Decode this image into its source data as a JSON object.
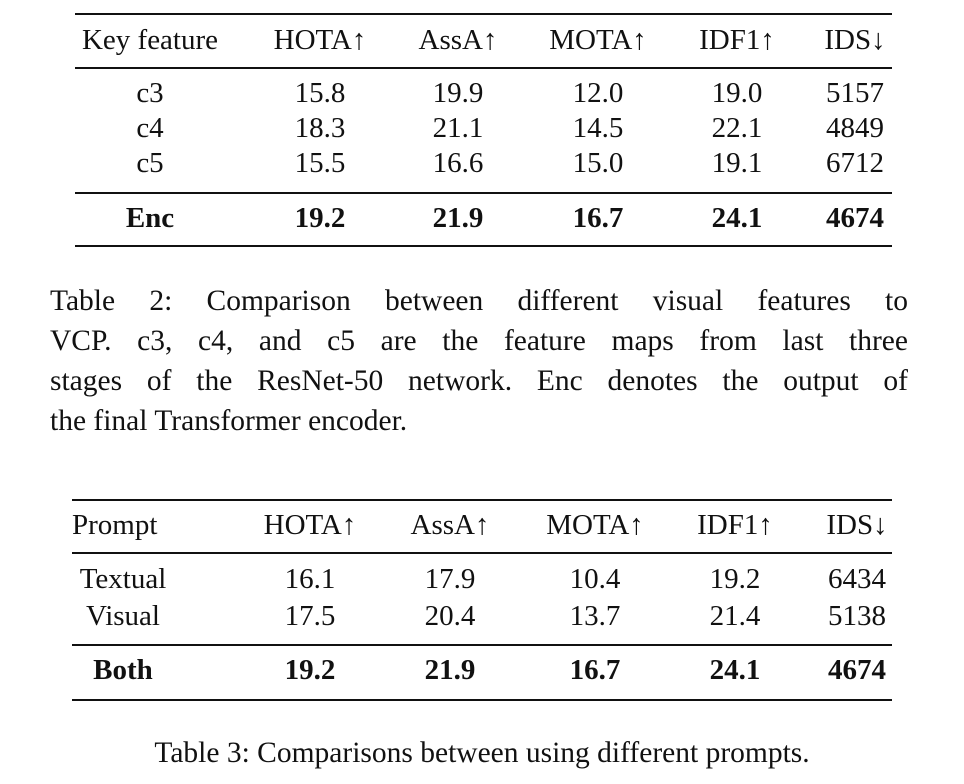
{
  "table2": {
    "headers": [
      "Key feature",
      "HOTA↑",
      "AssA↑",
      "MOTA↑",
      "IDF1↑",
      "IDS↓"
    ],
    "rows": [
      [
        "c3",
        "15.8",
        "19.9",
        "12.0",
        "19.0",
        "5157"
      ],
      [
        "c4",
        "18.3",
        "21.1",
        "14.5",
        "22.1",
        "4849"
      ],
      [
        "c5",
        "15.5",
        "16.6",
        "15.0",
        "19.1",
        "6712"
      ]
    ],
    "best": [
      "Enc",
      "19.2",
      "21.9",
      "16.7",
      "24.1",
      "4674"
    ],
    "caption_lines": [
      "Table 2: Comparison between different visual features to",
      "VCP. c3, c4, and c5 are the feature maps from last three",
      "stages of the ResNet-50 network. Enc denotes the output of",
      "the final Transformer encoder."
    ]
  },
  "table3": {
    "headers": [
      "Prompt",
      "HOTA↑",
      "AssA↑",
      "MOTA↑",
      "IDF1↑",
      "IDS↓"
    ],
    "rows": [
      [
        "Textual",
        "16.1",
        "17.9",
        "10.4",
        "19.2",
        "6434"
      ],
      [
        "Visual",
        "17.5",
        "20.4",
        "13.7",
        "21.4",
        "5138"
      ]
    ],
    "best": [
      "Both",
      "19.2",
      "21.9",
      "16.7",
      "24.1",
      "4674"
    ],
    "caption": "Table 3: Comparisons between using different prompts."
  }
}
